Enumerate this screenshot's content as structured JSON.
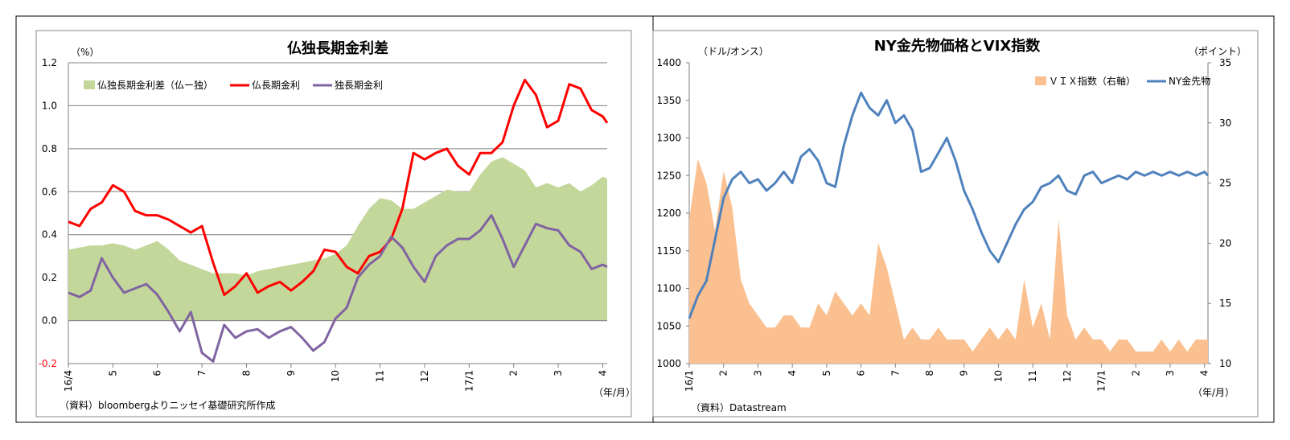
{
  "charts": [
    {
      "title": "仏独長期金利差",
      "y_unit": "（%）",
      "x_unit": "（年/月）",
      "source": "（資料）bloombergよりニッセイ基礎研究所作成",
      "y_ticks": [
        "1.2",
        "1.0",
        "0.8",
        "0.6",
        "0.4",
        "0.2",
        "0.0",
        "-0.2"
      ],
      "x_ticks": [
        "16/4",
        "5",
        "6",
        "7",
        "8",
        "9",
        "10",
        "11",
        "12",
        "17/1",
        "2",
        "3",
        "4"
      ],
      "legend": [
        "仏独長期金利差（仏ー独）",
        "仏長期金利",
        "独長期金利"
      ]
    },
    {
      "title": "NY金先物価格とVIX指数",
      "y_left_unit": "（ドル/オンス）",
      "y_right_unit": "（ポイント）",
      "x_unit": "（年/月）",
      "source": "（資料）Datastream",
      "y_left_ticks": [
        "1400",
        "1350",
        "1300",
        "1250",
        "1200",
        "1150",
        "1100",
        "1050",
        "1000"
      ],
      "y_right_ticks": [
        "35",
        "30",
        "25",
        "20",
        "15",
        "10"
      ],
      "x_ticks": [
        "16/1",
        "2",
        "3",
        "4",
        "5",
        "6",
        "7",
        "8",
        "9",
        "10",
        "11",
        "12",
        "17/1",
        "2",
        "3",
        "4"
      ],
      "legend": [
        "ＶＩＸ指数（右軸）",
        "NY金先物"
      ]
    }
  ],
  "chart_data": [
    {
      "type": "line",
      "title": "仏独長期金利差",
      "ylabel": "（%）",
      "xlabel": "（年/月）",
      "ylim": [
        -0.2,
        1.2
      ],
      "grid": true,
      "legend_position": "top-left",
      "x_ticks": [
        "16/4",
        "5",
        "6",
        "7",
        "8",
        "9",
        "10",
        "11",
        "12",
        "17/1",
        "2",
        "3",
        "4"
      ],
      "x": [
        0,
        0.25,
        0.5,
        0.75,
        1,
        1.25,
        1.5,
        1.75,
        2,
        2.25,
        2.5,
        2.75,
        3,
        3.25,
        3.5,
        3.75,
        4,
        4.25,
        4.5,
        4.75,
        5,
        5.25,
        5.5,
        5.75,
        6,
        6.25,
        6.5,
        6.75,
        7,
        7.25,
        7.5,
        7.75,
        8,
        8.25,
        8.5,
        8.75,
        9,
        9.25,
        9.5,
        9.75,
        10,
        10.25,
        10.5,
        10.75,
        11,
        11.25,
        11.5,
        11.75,
        12,
        12.1
      ],
      "series": [
        {
          "name": "仏独長期金利差（仏ー独）",
          "type": "area",
          "color": "#c4d79b",
          "values": [
            0.33,
            0.34,
            0.35,
            0.35,
            0.36,
            0.35,
            0.33,
            0.35,
            0.37,
            0.33,
            0.28,
            0.26,
            0.24,
            0.22,
            0.22,
            0.22,
            0.21,
            0.23,
            0.24,
            0.25,
            0.26,
            0.27,
            0.28,
            0.29,
            0.31,
            0.35,
            0.44,
            0.52,
            0.57,
            0.56,
            0.52,
            0.52,
            0.55,
            0.58,
            0.61,
            0.6,
            0.6,
            0.68,
            0.74,
            0.76,
            0.73,
            0.7,
            0.62,
            0.64,
            0.62,
            0.64,
            0.6,
            0.63,
            0.67,
            0.66
          ]
        },
        {
          "name": "仏長期金利",
          "type": "line",
          "color": "#ff0000",
          "values": [
            0.46,
            0.44,
            0.52,
            0.55,
            0.63,
            0.6,
            0.51,
            0.49,
            0.49,
            0.47,
            0.44,
            0.41,
            0.44,
            0.27,
            0.12,
            0.16,
            0.22,
            0.13,
            0.16,
            0.18,
            0.14,
            0.18,
            0.23,
            0.33,
            0.32,
            0.25,
            0.22,
            0.3,
            0.32,
            0.38,
            0.52,
            0.78,
            0.75,
            0.78,
            0.8,
            0.72,
            0.68,
            0.78,
            0.78,
            0.83,
            1.0,
            1.12,
            1.05,
            0.9,
            0.93,
            1.1,
            1.08,
            0.98,
            0.95,
            0.92
          ]
        },
        {
          "name": "独長期金利",
          "type": "line",
          "color": "#8064a2",
          "values": [
            0.13,
            0.11,
            0.14,
            0.29,
            0.2,
            0.13,
            0.15,
            0.17,
            0.12,
            0.04,
            -0.05,
            0.04,
            -0.15,
            -0.19,
            -0.02,
            -0.08,
            -0.05,
            -0.04,
            -0.08,
            -0.05,
            -0.03,
            -0.08,
            -0.14,
            -0.1,
            0.01,
            0.06,
            0.2,
            0.26,
            0.3,
            0.39,
            0.34,
            0.25,
            0.18,
            0.3,
            0.35,
            0.38,
            0.38,
            0.42,
            0.49,
            0.38,
            0.25,
            0.35,
            0.45,
            0.43,
            0.42,
            0.35,
            0.32,
            0.24,
            0.26,
            0.25
          ]
        }
      ]
    },
    {
      "type": "line",
      "title": "NY金先物価格とVIX指数",
      "ylabel": "（ドル/オンス）",
      "y2label": "（ポイント）",
      "xlabel": "（年/月）",
      "ylim": [
        1000,
        1400
      ],
      "y2lim": [
        10,
        35
      ],
      "grid": false,
      "legend_position": "top-right",
      "x_ticks": [
        "16/1",
        "2",
        "3",
        "4",
        "5",
        "6",
        "7",
        "8",
        "9",
        "10",
        "11",
        "12",
        "17/1",
        "2",
        "3",
        "4"
      ],
      "x": [
        0,
        0.25,
        0.5,
        0.75,
        1,
        1.25,
        1.5,
        1.75,
        2,
        2.25,
        2.5,
        2.75,
        3,
        3.25,
        3.5,
        3.75,
        4,
        4.25,
        4.5,
        4.75,
        5,
        5.25,
        5.5,
        5.75,
        6,
        6.25,
        6.5,
        6.75,
        7,
        7.25,
        7.5,
        7.75,
        8,
        8.25,
        8.5,
        8.75,
        9,
        9.25,
        9.5,
        9.75,
        10,
        10.25,
        10.5,
        10.75,
        11,
        11.25,
        11.5,
        11.75,
        12,
        12.25,
        12.5,
        12.75,
        13,
        13.25,
        13.5,
        13.75,
        14,
        14.25,
        14.5,
        14.75,
        15,
        15.1
      ],
      "series": [
        {
          "name": "ＶＩＸ指数（右軸）",
          "type": "area",
          "axis": "right",
          "color": "#fac090",
          "values": [
            22,
            27,
            25,
            21,
            26,
            23,
            17,
            15,
            14,
            13,
            13,
            14,
            14,
            13,
            13,
            15,
            14,
            16,
            15,
            14,
            15,
            14,
            20,
            18,
            15,
            12,
            13,
            12,
            12,
            13,
            12,
            12,
            12,
            11,
            12,
            13,
            12,
            13,
            12,
            17,
            13,
            15,
            12,
            22,
            14,
            12,
            13,
            12,
            12,
            11,
            12,
            12,
            11,
            11,
            11,
            12,
            11,
            12,
            11,
            12,
            12,
            12
          ]
        },
        {
          "name": "NY金先物",
          "type": "line",
          "axis": "left",
          "color": "#4f81bd",
          "values": [
            1060,
            1090,
            1110,
            1165,
            1220,
            1245,
            1255,
            1240,
            1245,
            1230,
            1240,
            1255,
            1240,
            1275,
            1285,
            1270,
            1240,
            1235,
            1290,
            1330,
            1360,
            1340,
            1330,
            1350,
            1320,
            1330,
            1310,
            1255,
            1260,
            1280,
            1300,
            1270,
            1230,
            1205,
            1175,
            1150,
            1135,
            1160,
            1185,
            1205,
            1215,
            1235,
            1240,
            1250,
            1230,
            1225,
            1250,
            1255,
            1240,
            1245,
            1250,
            1245,
            1255,
            1250,
            1255,
            1250,
            1255,
            1250,
            1255,
            1250,
            1255,
            1250
          ]
        }
      ]
    }
  ]
}
